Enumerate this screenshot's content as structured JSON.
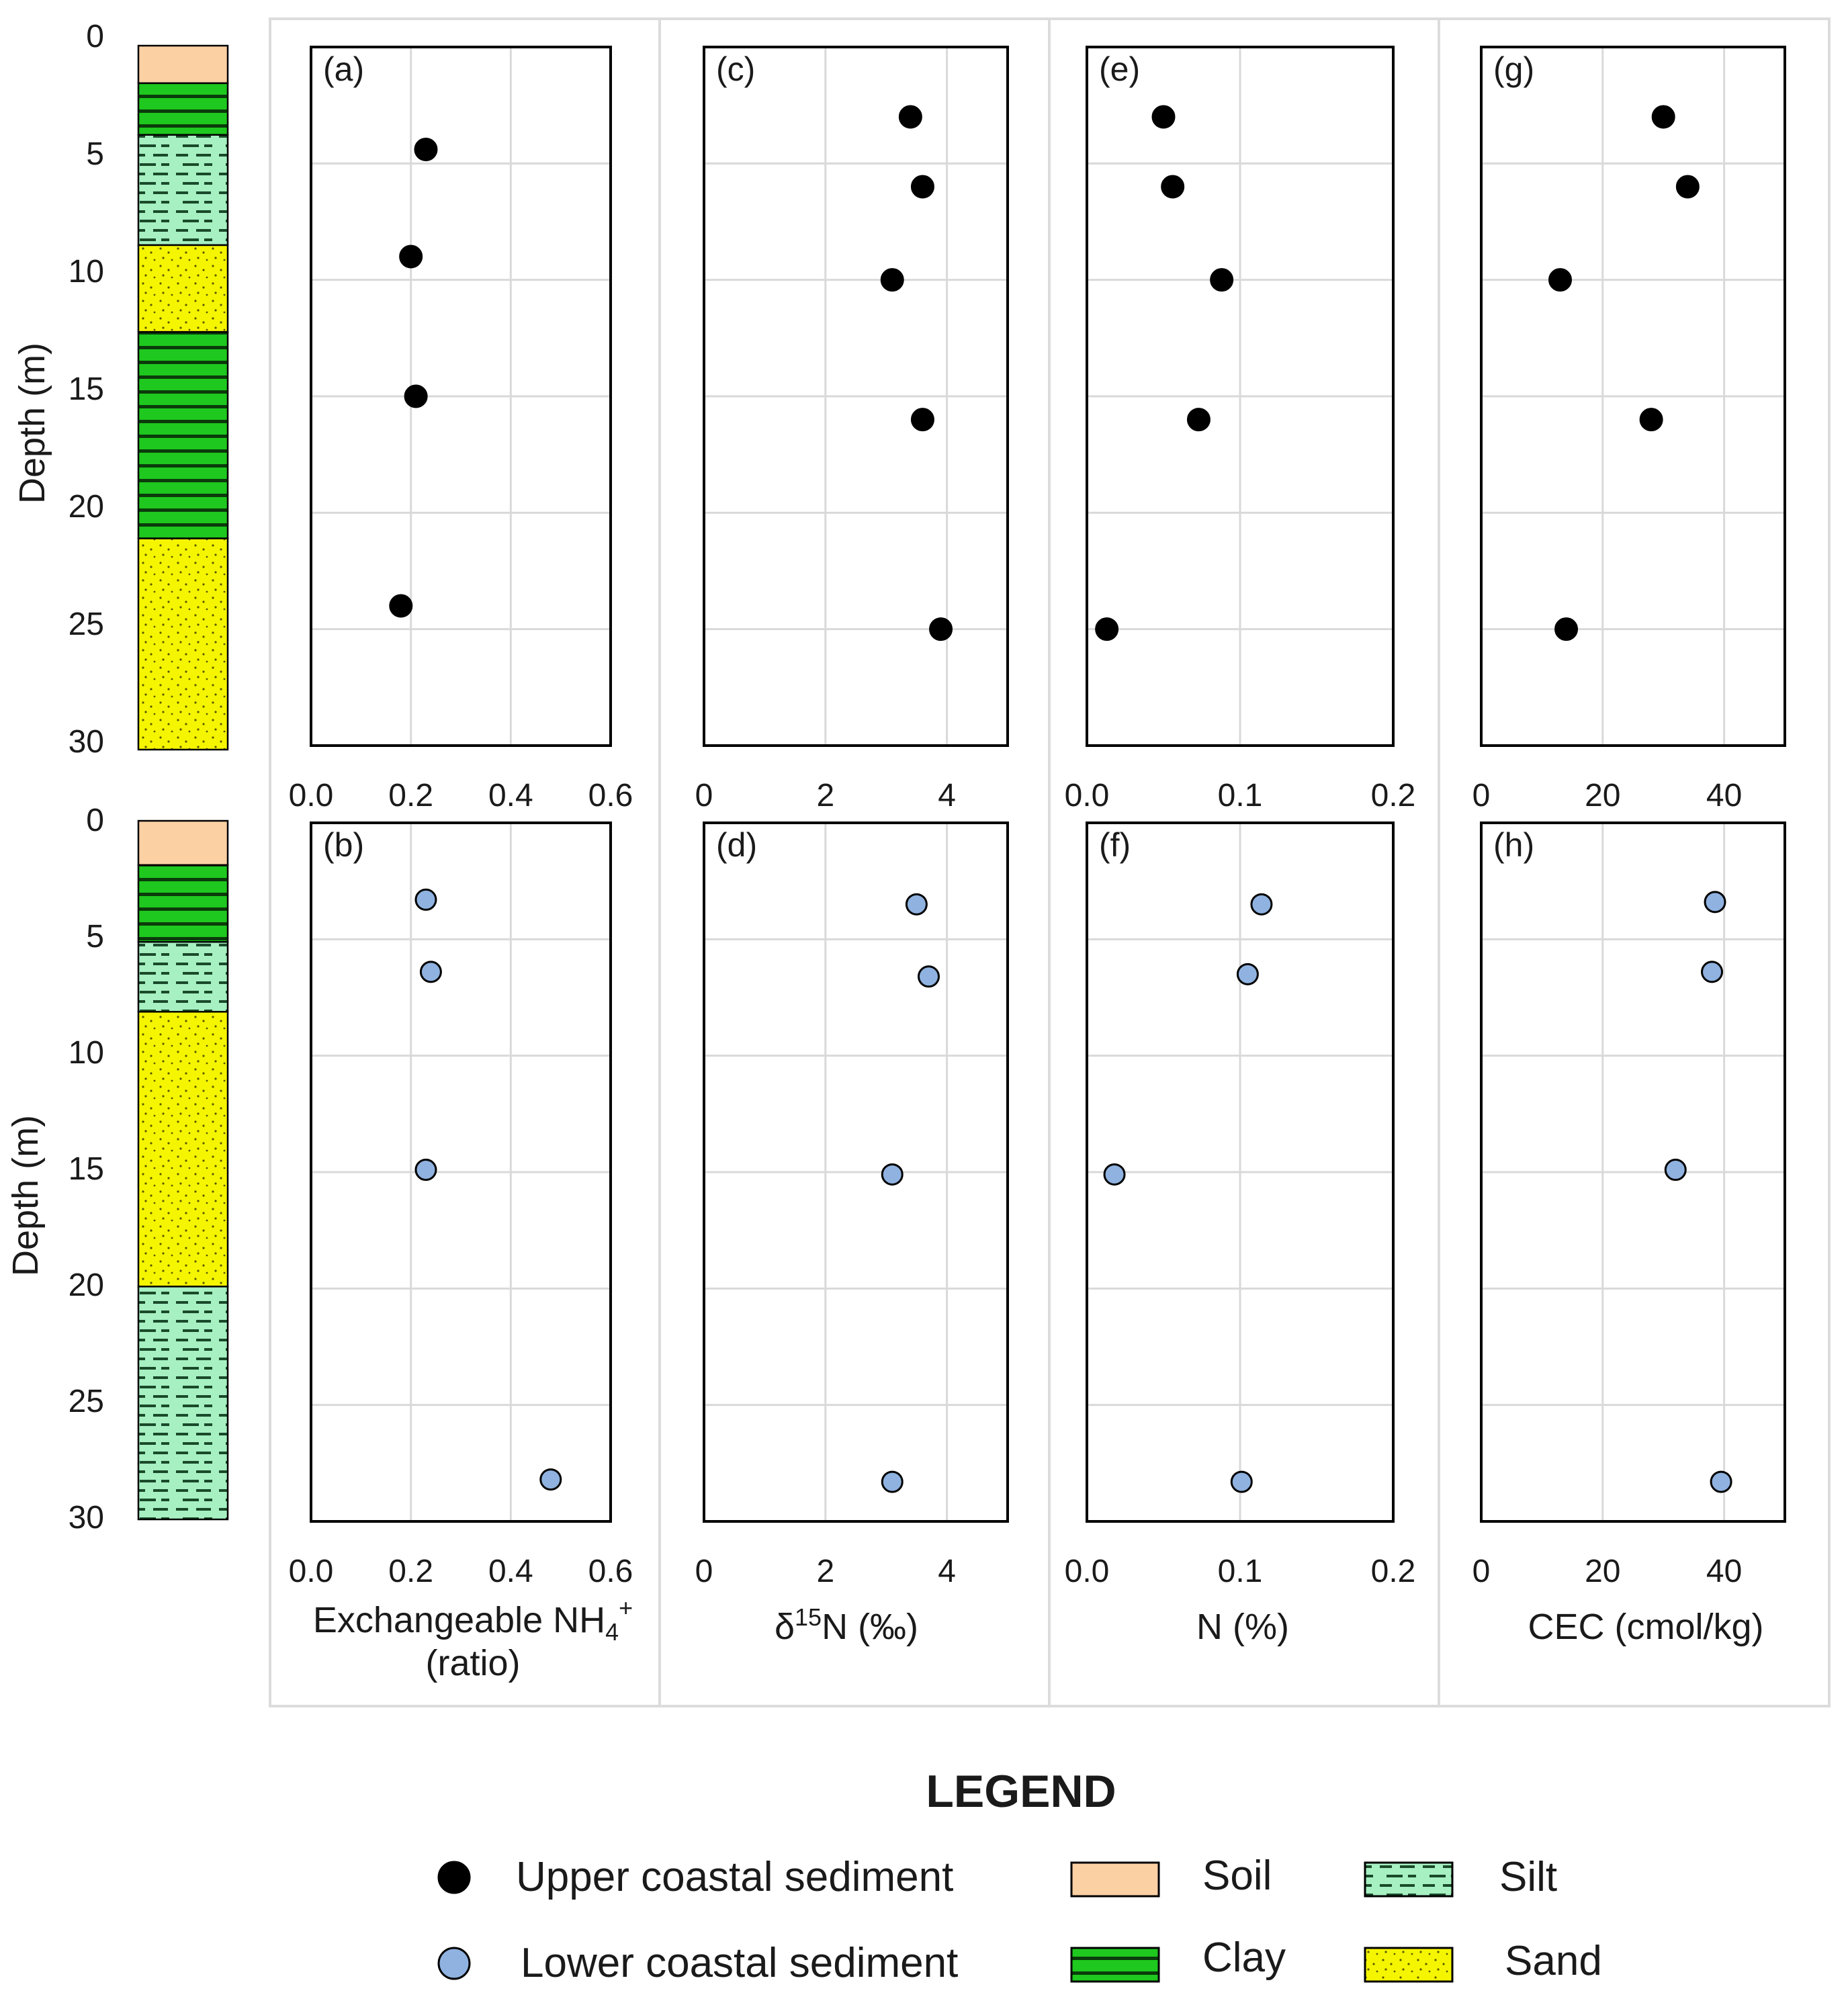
{
  "figure": {
    "depth_axis_label": "Depth (m)",
    "depth_ticks": [
      "0",
      "5",
      "10",
      "15",
      "20",
      "25",
      "30"
    ]
  },
  "colors": {
    "upper_marker": "#000000",
    "lower_marker": "#8fb2e0",
    "soil": "#fbd0a3",
    "clay": "#1ec81e",
    "silt": "#a6f0c2",
    "sand": "#f5f500",
    "grid": "#d9d9d9",
    "frame": "#000000"
  },
  "lithology": {
    "upper": [
      {
        "type": "soil",
        "top": 0,
        "bottom": 1.6
      },
      {
        "type": "clay",
        "top": 1.6,
        "bottom": 3.8
      },
      {
        "type": "silt",
        "top": 3.8,
        "bottom": 8.5
      },
      {
        "type": "sand",
        "top": 8.5,
        "bottom": 12.2
      },
      {
        "type": "clay",
        "top": 12.2,
        "bottom": 21
      },
      {
        "type": "sand",
        "top": 21,
        "bottom": 30
      }
    ],
    "lower": [
      {
        "type": "soil",
        "top": 0,
        "bottom": 1.9
      },
      {
        "type": "clay",
        "top": 1.9,
        "bottom": 5.2
      },
      {
        "type": "silt",
        "top": 5.2,
        "bottom": 8.2
      },
      {
        "type": "sand",
        "top": 8.2,
        "bottom": 20
      },
      {
        "type": "silt",
        "top": 20,
        "bottom": 30
      }
    ]
  },
  "chart_data": [
    {
      "type": "scatter",
      "panel": "(a)",
      "series": "Upper coastal sediment",
      "xlim": [
        0,
        0.6
      ],
      "ylim": [
        30,
        0
      ],
      "xticks": [
        "0.0",
        "0.2",
        "0.4",
        "0.6"
      ],
      "x": [
        0.23,
        0.2,
        0.21,
        0.18
      ],
      "y": [
        4.4,
        9,
        15,
        24
      ]
    },
    {
      "type": "scatter",
      "panel": "(b)",
      "series": "Lower coastal sediment",
      "xlim": [
        0,
        0.6
      ],
      "ylim": [
        30,
        0
      ],
      "xticks": [
        "0.0",
        "0.2",
        "0.4",
        "0.6"
      ],
      "x": [
        0.23,
        0.24,
        0.23,
        0.48
      ],
      "y": [
        3.3,
        6.4,
        14.9,
        28.2
      ],
      "xlabel": "Exchangeable NH",
      "xlabel_sub": "4",
      "xlabel_sup": "+",
      "xlabel_line2": "(ratio)"
    },
    {
      "type": "scatter",
      "panel": "(c)",
      "series": "Upper coastal sediment",
      "xlim": [
        0,
        5
      ],
      "ylim": [
        30,
        0
      ],
      "xticks": [
        "0",
        "2",
        "4"
      ],
      "x": [
        3.4,
        3.6,
        3.1,
        3.6,
        3.9
      ],
      "y": [
        3,
        6,
        10,
        16,
        25
      ]
    },
    {
      "type": "scatter",
      "panel": "(d)",
      "series": "Lower coastal sediment",
      "xlim": [
        0,
        5
      ],
      "ylim": [
        30,
        0
      ],
      "xticks": [
        "0",
        "2",
        "4"
      ],
      "x": [
        3.5,
        3.7,
        3.1,
        3.1
      ],
      "y": [
        3.5,
        6.6,
        15.1,
        28.3
      ],
      "xlabel_pre": "δ",
      "xlabel_sup": "15",
      "xlabel_post": "N (‰)"
    },
    {
      "type": "scatter",
      "panel": "(e)",
      "series": "Upper coastal sediment",
      "xlim": [
        0,
        0.2
      ],
      "ylim": [
        30,
        0
      ],
      "xticks": [
        "0.0",
        "0.1",
        "0.2"
      ],
      "x": [
        0.05,
        0.056,
        0.088,
        0.073,
        0.013
      ],
      "y": [
        3,
        6,
        10,
        16,
        25
      ]
    },
    {
      "type": "scatter",
      "panel": "(f)",
      "series": "Lower coastal sediment",
      "xlim": [
        0,
        0.2
      ],
      "ylim": [
        30,
        0
      ],
      "xticks": [
        "0.0",
        "0.1",
        "0.2"
      ],
      "x": [
        0.114,
        0.105,
        0.018,
        0.101
      ],
      "y": [
        3.5,
        6.5,
        15.1,
        28.3
      ],
      "xlabel": "N (%)"
    },
    {
      "type": "scatter",
      "panel": "(g)",
      "series": "Upper coastal sediment",
      "xlim": [
        0,
        50
      ],
      "ylim": [
        30,
        0
      ],
      "xticks": [
        "0",
        "20",
        "40"
      ],
      "x": [
        30,
        34,
        13,
        28,
        14
      ],
      "y": [
        3,
        6,
        10,
        16,
        25
      ]
    },
    {
      "type": "scatter",
      "panel": "(h)",
      "series": "Lower coastal sediment",
      "xlim": [
        0,
        50
      ],
      "ylim": [
        30,
        0
      ],
      "xticks": [
        "0",
        "20",
        "40"
      ],
      "x": [
        38.5,
        38,
        32,
        39.5
      ],
      "y": [
        3.4,
        6.4,
        14.9,
        28.3
      ],
      "xlabel": "CEC (cmol/kg)"
    }
  ],
  "legend": {
    "title": "LEGEND",
    "upper_label": "Upper coastal sediment",
    "lower_label": "Lower coastal sediment",
    "soil": "Soil",
    "clay": "Clay",
    "silt": "Silt",
    "sand": "Sand"
  }
}
